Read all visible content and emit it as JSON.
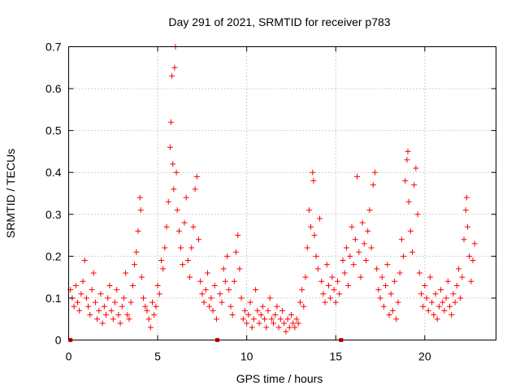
{
  "chart_data": {
    "type": "scatter",
    "title": "Day 291 of 2021, SRMTID for receiver p783",
    "xlabel": "GPS time / hours",
    "ylabel": "SRMTID / TECUs",
    "xlim": [
      0,
      24
    ],
    "ylim": [
      0,
      0.7
    ],
    "x_ticks": [
      {
        "value": 0,
        "label": "0"
      },
      {
        "value": 5,
        "label": "5"
      },
      {
        "value": 10,
        "label": "10"
      },
      {
        "value": 15,
        "label": "15"
      },
      {
        "value": 20,
        "label": "20"
      }
    ],
    "y_ticks": [
      {
        "value": 0,
        "label": "0"
      },
      {
        "value": 0.1,
        "label": "0.1"
      },
      {
        "value": 0.2,
        "label": "0.2"
      },
      {
        "value": 0.3,
        "label": "0.3"
      },
      {
        "value": 0.4,
        "label": "0.4"
      },
      {
        "value": 0.5,
        "label": "0.5"
      },
      {
        "value": 0.6,
        "label": "0.6"
      },
      {
        "value": 0.7,
        "label": "0.7"
      }
    ],
    "grid": true,
    "marker": "plus",
    "color": "#ff0000",
    "gap_markers_x": [
      0.1,
      8.35,
      15.3
    ],
    "series": [
      {
        "name": "SRMTID",
        "points": [
          [
            0.1,
            0.12
          ],
          [
            0.2,
            0.1
          ],
          [
            0.3,
            0.08
          ],
          [
            0.4,
            0.13
          ],
          [
            0.5,
            0.09
          ],
          [
            0.6,
            0.07
          ],
          [
            0.7,
            0.11
          ],
          [
            0.8,
            0.14
          ],
          [
            0.9,
            0.19
          ],
          [
            1.0,
            0.1
          ],
          [
            1.1,
            0.08
          ],
          [
            1.2,
            0.06
          ],
          [
            1.3,
            0.12
          ],
          [
            1.4,
            0.16
          ],
          [
            1.5,
            0.09
          ],
          [
            1.6,
            0.05
          ],
          [
            1.7,
            0.07
          ],
          [
            1.8,
            0.11
          ],
          [
            1.9,
            0.04
          ],
          [
            2.0,
            0.08
          ],
          [
            2.1,
            0.06
          ],
          [
            2.2,
            0.1
          ],
          [
            2.3,
            0.13
          ],
          [
            2.4,
            0.07
          ],
          [
            2.5,
            0.05
          ],
          [
            2.6,
            0.09
          ],
          [
            2.7,
            0.12
          ],
          [
            2.8,
            0.06
          ],
          [
            2.9,
            0.04
          ],
          [
            3.0,
            0.08
          ],
          [
            3.1,
            0.1
          ],
          [
            3.2,
            0.16
          ],
          [
            3.3,
            0.06
          ],
          [
            3.4,
            0.05
          ],
          [
            3.5,
            0.09
          ],
          [
            3.6,
            0.13
          ],
          [
            3.7,
            0.18
          ],
          [
            3.8,
            0.21
          ],
          [
            3.9,
            0.26
          ],
          [
            4.0,
            0.34
          ],
          [
            4.05,
            0.31
          ],
          [
            4.1,
            0.15
          ],
          [
            4.2,
            0.1
          ],
          [
            4.3,
            0.08
          ],
          [
            4.4,
            0.07
          ],
          [
            4.5,
            0.05
          ],
          [
            4.6,
            0.03
          ],
          [
            4.7,
            0.09
          ],
          [
            4.8,
            0.06
          ],
          [
            4.9,
            0.08
          ],
          [
            5.0,
            0.13
          ],
          [
            5.1,
            0.11
          ],
          [
            5.2,
            0.19
          ],
          [
            5.3,
            0.17
          ],
          [
            5.4,
            0.22
          ],
          [
            5.5,
            0.27
          ],
          [
            5.6,
            0.33
          ],
          [
            5.7,
            0.46
          ],
          [
            5.75,
            0.52
          ],
          [
            5.8,
            0.63
          ],
          [
            5.85,
            0.42
          ],
          [
            5.9,
            0.36
          ],
          [
            5.95,
            0.65
          ],
          [
            6.0,
            0.7
          ],
          [
            6.05,
            0.4
          ],
          [
            6.1,
            0.31
          ],
          [
            6.2,
            0.26
          ],
          [
            6.3,
            0.22
          ],
          [
            6.4,
            0.18
          ],
          [
            6.5,
            0.28
          ],
          [
            6.6,
            0.34
          ],
          [
            6.7,
            0.19
          ],
          [
            6.8,
            0.15
          ],
          [
            6.9,
            0.22
          ],
          [
            7.0,
            0.27
          ],
          [
            7.1,
            0.36
          ],
          [
            7.2,
            0.39
          ],
          [
            7.3,
            0.24
          ],
          [
            7.4,
            0.14
          ],
          [
            7.5,
            0.11
          ],
          [
            7.6,
            0.09
          ],
          [
            7.7,
            0.12
          ],
          [
            7.8,
            0.16
          ],
          [
            7.9,
            0.08
          ],
          [
            8.0,
            0.1
          ],
          [
            8.1,
            0.07
          ],
          [
            8.2,
            0.13
          ],
          [
            8.3,
            0.05
          ],
          [
            8.5,
            0.11
          ],
          [
            8.6,
            0.09
          ],
          [
            8.7,
            0.17
          ],
          [
            8.8,
            0.14
          ],
          [
            8.9,
            0.2
          ],
          [
            9.0,
            0.12
          ],
          [
            9.1,
            0.08
          ],
          [
            9.2,
            0.06
          ],
          [
            9.3,
            0.14
          ],
          [
            9.4,
            0.21
          ],
          [
            9.5,
            0.25
          ],
          [
            9.6,
            0.17
          ],
          [
            9.7,
            0.1
          ],
          [
            9.8,
            0.05
          ],
          [
            9.9,
            0.07
          ],
          [
            10.0,
            0.04
          ],
          [
            10.1,
            0.06
          ],
          [
            10.2,
            0.09
          ],
          [
            10.3,
            0.03
          ],
          [
            10.4,
            0.05
          ],
          [
            10.5,
            0.12
          ],
          [
            10.6,
            0.07
          ],
          [
            10.7,
            0.04
          ],
          [
            10.8,
            0.06
          ],
          [
            10.9,
            0.08
          ],
          [
            11.0,
            0.05
          ],
          [
            11.1,
            0.03
          ],
          [
            11.2,
            0.07
          ],
          [
            11.3,
            0.1
          ],
          [
            11.4,
            0.05
          ],
          [
            11.5,
            0.04
          ],
          [
            11.6,
            0.06
          ],
          [
            11.7,
            0.08
          ],
          [
            11.8,
            0.03
          ],
          [
            11.9,
            0.05
          ],
          [
            12.0,
            0.07
          ],
          [
            12.1,
            0.04
          ],
          [
            12.2,
            0.02
          ],
          [
            12.3,
            0.05
          ],
          [
            12.4,
            0.03
          ],
          [
            12.5,
            0.06
          ],
          [
            12.6,
            0.04
          ],
          [
            12.7,
            0.03
          ],
          [
            12.8,
            0.05
          ],
          [
            12.9,
            0.04
          ],
          [
            13.0,
            0.09
          ],
          [
            13.1,
            0.12
          ],
          [
            13.2,
            0.08
          ],
          [
            13.3,
            0.15
          ],
          [
            13.4,
            0.22
          ],
          [
            13.5,
            0.31
          ],
          [
            13.6,
            0.27
          ],
          [
            13.7,
            0.4
          ],
          [
            13.75,
            0.38
          ],
          [
            13.8,
            0.25
          ],
          [
            13.9,
            0.2
          ],
          [
            14.0,
            0.17
          ],
          [
            14.1,
            0.29
          ],
          [
            14.2,
            0.14
          ],
          [
            14.3,
            0.11
          ],
          [
            14.4,
            0.09
          ],
          [
            14.5,
            0.18
          ],
          [
            14.6,
            0.13
          ],
          [
            14.7,
            0.1
          ],
          [
            14.8,
            0.15
          ],
          [
            14.9,
            0.12
          ],
          [
            15.0,
            0.09
          ],
          [
            15.1,
            0.14
          ],
          [
            15.2,
            0.11
          ],
          [
            15.4,
            0.19
          ],
          [
            15.5,
            0.16
          ],
          [
            15.6,
            0.22
          ],
          [
            15.7,
            0.13
          ],
          [
            15.8,
            0.2
          ],
          [
            15.9,
            0.27
          ],
          [
            16.0,
            0.18
          ],
          [
            16.1,
            0.24
          ],
          [
            16.2,
            0.39
          ],
          [
            16.3,
            0.21
          ],
          [
            16.4,
            0.15
          ],
          [
            16.5,
            0.28
          ],
          [
            16.6,
            0.23
          ],
          [
            16.7,
            0.19
          ],
          [
            16.8,
            0.26
          ],
          [
            16.9,
            0.31
          ],
          [
            17.0,
            0.22
          ],
          [
            17.1,
            0.37
          ],
          [
            17.2,
            0.4
          ],
          [
            17.3,
            0.17
          ],
          [
            17.4,
            0.12
          ],
          [
            17.5,
            0.1
          ],
          [
            17.6,
            0.15
          ],
          [
            17.7,
            0.08
          ],
          [
            17.8,
            0.13
          ],
          [
            17.9,
            0.18
          ],
          [
            18.0,
            0.06
          ],
          [
            18.1,
            0.11
          ],
          [
            18.2,
            0.07
          ],
          [
            18.3,
            0.14
          ],
          [
            18.4,
            0.05
          ],
          [
            18.5,
            0.09
          ],
          [
            18.6,
            0.16
          ],
          [
            18.7,
            0.24
          ],
          [
            18.8,
            0.2
          ],
          [
            18.9,
            0.38
          ],
          [
            19.0,
            0.43
          ],
          [
            19.05,
            0.45
          ],
          [
            19.1,
            0.33
          ],
          [
            19.2,
            0.26
          ],
          [
            19.3,
            0.21
          ],
          [
            19.4,
            0.37
          ],
          [
            19.5,
            0.41
          ],
          [
            19.6,
            0.3
          ],
          [
            19.7,
            0.16
          ],
          [
            19.8,
            0.11
          ],
          [
            19.9,
            0.08
          ],
          [
            20.0,
            0.13
          ],
          [
            20.1,
            0.1
          ],
          [
            20.2,
            0.07
          ],
          [
            20.3,
            0.15
          ],
          [
            20.4,
            0.09
          ],
          [
            20.5,
            0.06
          ],
          [
            20.6,
            0.11
          ],
          [
            20.7,
            0.05
          ],
          [
            20.8,
            0.08
          ],
          [
            20.9,
            0.12
          ],
          [
            21.0,
            0.09
          ],
          [
            21.1,
            0.07
          ],
          [
            21.2,
            0.1
          ],
          [
            21.3,
            0.14
          ],
          [
            21.4,
            0.08
          ],
          [
            21.5,
            0.06
          ],
          [
            21.6,
            0.11
          ],
          [
            21.7,
            0.09
          ],
          [
            21.8,
            0.13
          ],
          [
            21.9,
            0.17
          ],
          [
            22.0,
            0.1
          ],
          [
            22.1,
            0.15
          ],
          [
            22.2,
            0.24
          ],
          [
            22.3,
            0.31
          ],
          [
            22.35,
            0.34
          ],
          [
            22.4,
            0.27
          ],
          [
            22.5,
            0.2
          ],
          [
            22.6,
            0.14
          ],
          [
            22.7,
            0.19
          ],
          [
            22.8,
            0.23
          ]
        ]
      }
    ]
  }
}
